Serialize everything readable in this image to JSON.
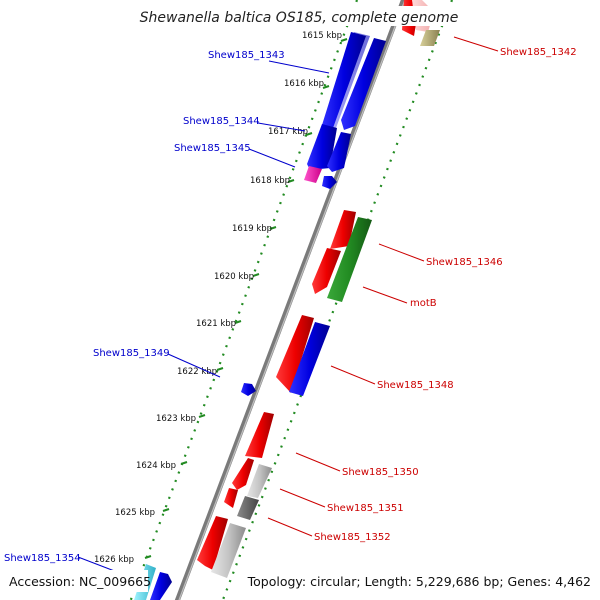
{
  "title": "Shewanella baltica OS185, complete genome",
  "footer": {
    "accession": "Accession: NC_009665",
    "summary": "Topology: circular; Length: 5,229,686 bp; Genes: 4,462"
  },
  "ticks": [
    "1615 kbp",
    "1616 kbp",
    "1617 kbp",
    "1618 kbp",
    "1619 kbp",
    "1620 kbp",
    "1621 kbp",
    "1622 kbp",
    "1623 kbp",
    "1624 kbp",
    "1625 kbp",
    "1626 kbp"
  ],
  "gene_labels": {
    "g1342": "Shew185_1342",
    "g1343": "Shew185_1343",
    "g1344": "Shew185_1344",
    "g1345": "Shew185_1345",
    "g1346": "Shew185_1346",
    "motB": "motB",
    "g1348": "Shew185_1348",
    "g1349": "Shew185_1349",
    "g1350": "Shew185_1350",
    "g1351": "Shew185_1351",
    "g1352": "Shew185_1352",
    "g1354": "Shew185_1354"
  },
  "colors": {
    "blue": "#0000ee",
    "red": "#ee0000",
    "green": "#228b22",
    "grey_backbone": "#808080",
    "guide_dots": "#228b22",
    "blue_label": "#0000cc",
    "red_label": "#cc0000"
  }
}
